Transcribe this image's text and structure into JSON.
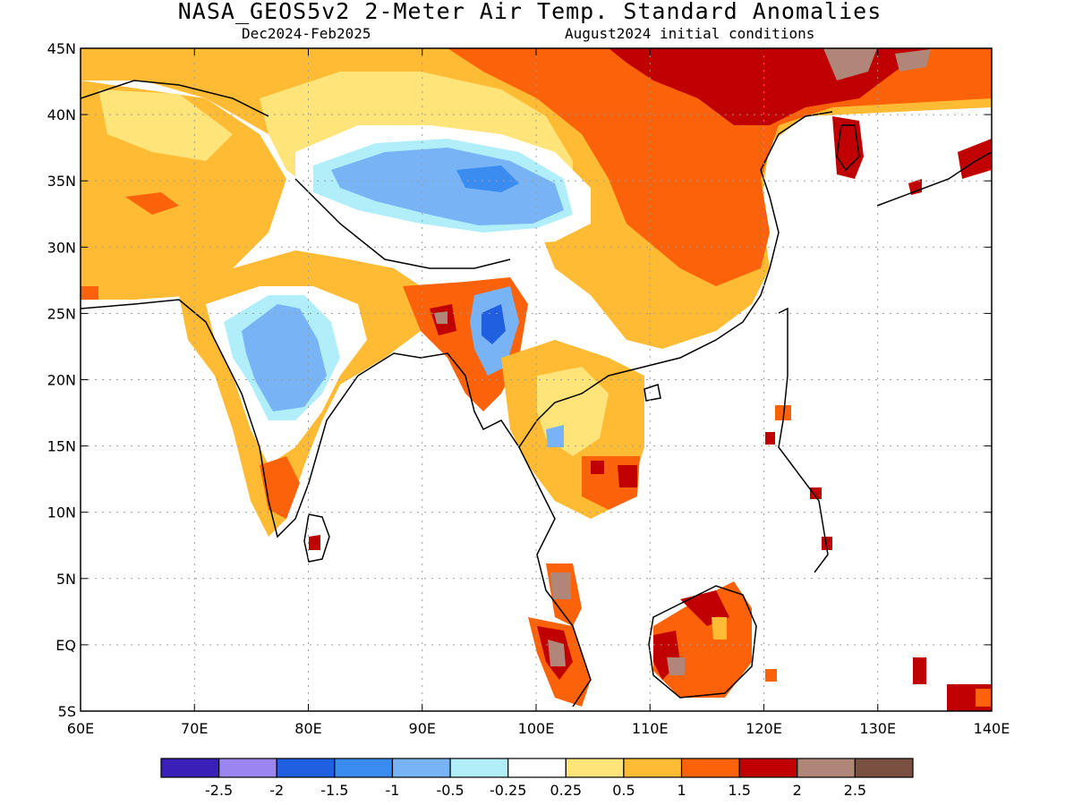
{
  "title": "NASA_GEOS5v2 2-Meter Air Temp. Standard Anomalies",
  "season": "Dec2024-Feb2025",
  "init": "August2024 initial conditions",
  "lat_labels": [
    "45N",
    "40N",
    "35N",
    "30N",
    "25N",
    "20N",
    "15N",
    "10N",
    "5N",
    "EQ",
    "5S"
  ],
  "lon_labels": [
    "60E",
    "70E",
    "80E",
    "90E",
    "100E",
    "110E",
    "120E",
    "130E",
    "140E"
  ],
  "colorbar": {
    "colors": [
      "#3a1fb8",
      "#9b85f0",
      "#1f5fe0",
      "#3a8cf0",
      "#78b4f5",
      "#b0eefa",
      "#ffffff",
      "#ffe47a",
      "#ffbb33",
      "#fb6209",
      "#c00000",
      "#b08678",
      "#7a5040"
    ],
    "labels": [
      "-2.5",
      "-2",
      "-1.5",
      "-1",
      "-0.5",
      "-0.25",
      "0.25",
      "0.5",
      "1",
      "1.5",
      "2",
      "2.5"
    ]
  }
}
